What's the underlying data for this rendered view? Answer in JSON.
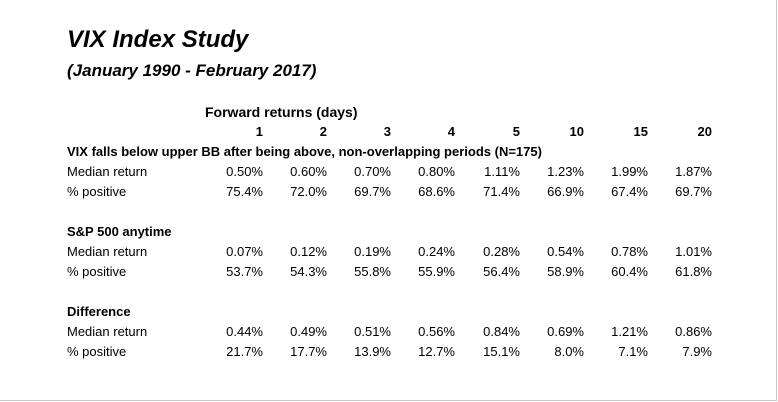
{
  "title": "VIX Index Study",
  "subtitle": "(January 1990 - February 2017)",
  "header": {
    "forward_label": "Forward returns (days)",
    "periods": [
      "1",
      "2",
      "3",
      "4",
      "5",
      "10",
      "15",
      "20"
    ]
  },
  "sections": [
    {
      "heading": "VIX falls below upper BB after being above, non-overlapping periods (N=175)",
      "rows": [
        {
          "label": "Median return",
          "values": [
            "0.50%",
            "0.60%",
            "0.70%",
            "0.80%",
            "1.11%",
            "1.23%",
            "1.99%",
            "1.87%"
          ]
        },
        {
          "label": "% positive",
          "values": [
            "75.4%",
            "72.0%",
            "69.7%",
            "68.6%",
            "71.4%",
            "66.9%",
            "67.4%",
            "69.7%"
          ]
        }
      ]
    },
    {
      "heading": "S&P 500 anytime",
      "rows": [
        {
          "label": "Median return",
          "values": [
            "0.07%",
            "0.12%",
            "0.19%",
            "0.24%",
            "0.28%",
            "0.54%",
            "0.78%",
            "1.01%"
          ]
        },
        {
          "label": "% positive",
          "values": [
            "53.7%",
            "54.3%",
            "55.8%",
            "55.9%",
            "56.4%",
            "58.9%",
            "60.4%",
            "61.8%"
          ]
        }
      ]
    },
    {
      "heading": "Difference",
      "rows": [
        {
          "label": "Median return",
          "values": [
            "0.44%",
            "0.49%",
            "0.51%",
            "0.56%",
            "0.84%",
            "0.69%",
            "1.21%",
            "0.86%"
          ]
        },
        {
          "label": "% positive",
          "values": [
            "21.7%",
            "17.7%",
            "13.9%",
            "12.7%",
            "15.1%",
            "8.0%",
            "7.1%",
            "7.9%"
          ]
        }
      ]
    }
  ]
}
